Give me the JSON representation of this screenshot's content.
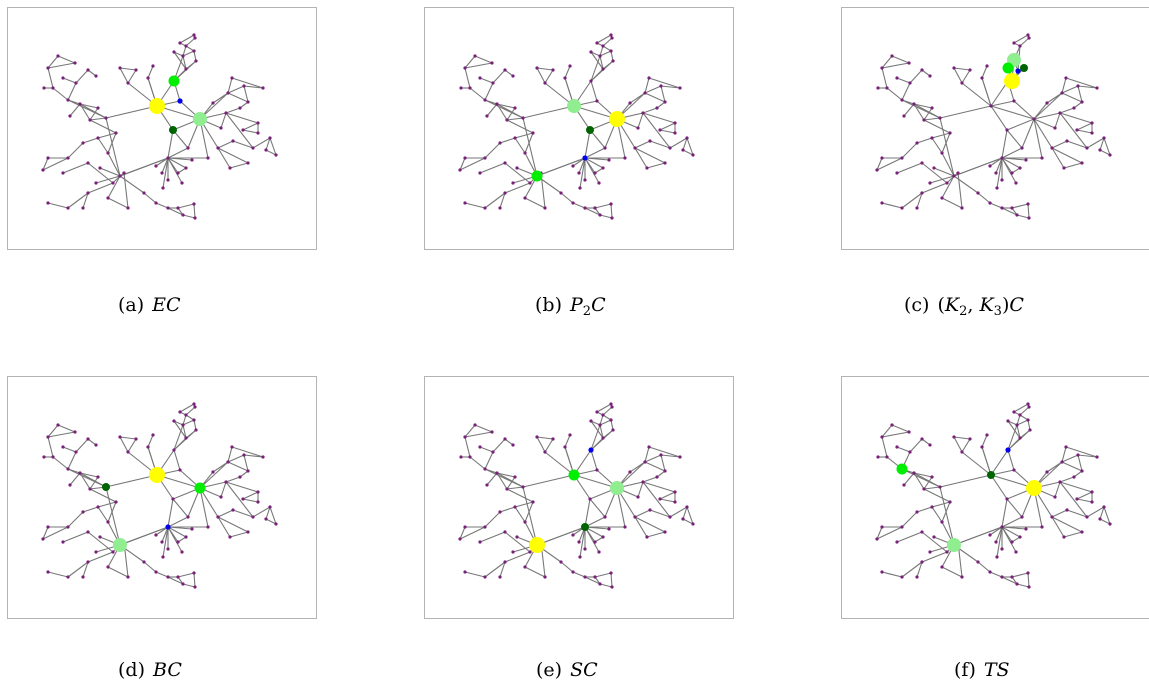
{
  "colors": {
    "edge": "#777777",
    "small_node": "#7a1f7a",
    "rank1": "#ffff00",
    "rank2": "#90ee90",
    "rank3": "#00ee00",
    "rank4": "#006400",
    "rank5": "#0000ee",
    "frame": "#b3b3b3"
  },
  "panels": [
    {
      "label": "(a)",
      "caption_parts": [
        {
          "t": "EC"
        }
      ]
    },
    {
      "label": "(b)",
      "caption_parts": [
        {
          "t": "P"
        },
        {
          "sub": "2"
        },
        {
          "t": "C"
        }
      ]
    },
    {
      "label": "(c)",
      "caption_parts": [
        {
          "n": "("
        },
        {
          "t": "K"
        },
        {
          "sub": "2"
        },
        {
          "n": ", "
        },
        {
          "t": "K"
        },
        {
          "sub": "3"
        },
        {
          "n": ")"
        },
        {
          "t": "C"
        }
      ]
    },
    {
      "label": "(d)",
      "caption_parts": [
        {
          "t": "BC"
        }
      ]
    },
    {
      "label": "(e)",
      "caption_parts": [
        {
          "t": "SC"
        }
      ]
    },
    {
      "label": "(f)",
      "caption_parts": [
        {
          "t": "TS"
        }
      ]
    }
  ]
}
